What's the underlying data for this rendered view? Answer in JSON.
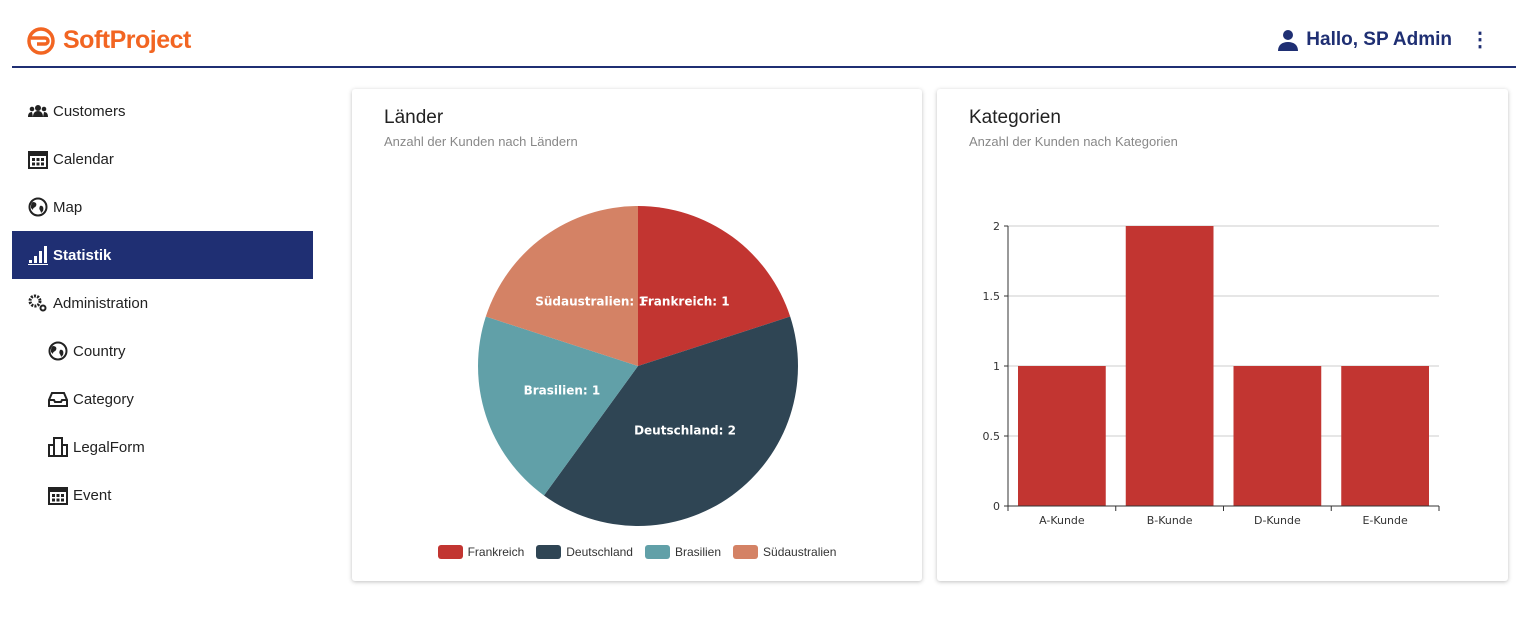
{
  "header": {
    "brand": "SoftProject",
    "greeting": "Hallo, SP Admin",
    "brand_color": "#f26522",
    "accent_color": "#1f2f73"
  },
  "sidebar": {
    "items": [
      {
        "label": "Customers",
        "icon": "users-icon"
      },
      {
        "label": "Calendar",
        "icon": "calendar-icon"
      },
      {
        "label": "Map",
        "icon": "globe-icon"
      },
      {
        "label": "Statistik",
        "icon": "bar-chart-icon",
        "active": true
      },
      {
        "label": "Administration",
        "icon": "gears-icon"
      },
      {
        "label": "Country",
        "icon": "globe-icon",
        "sub": true
      },
      {
        "label": "Category",
        "icon": "inbox-icon",
        "sub": true
      },
      {
        "label": "LegalForm",
        "icon": "building-icon",
        "sub": true
      },
      {
        "label": "Event",
        "icon": "calendar-icon",
        "sub": true
      }
    ]
  },
  "cards": {
    "laender": {
      "title": "Länder",
      "subtitle": "Anzahl der Kunden nach Ländern"
    },
    "kategorien": {
      "title": "Kategorien",
      "subtitle": "Anzahl der Kunden nach Kategorien"
    }
  },
  "chart_data": [
    {
      "type": "pie",
      "categories": [
        "Frankreich",
        "Deutschland",
        "Brasilien",
        "Südaustralien"
      ],
      "values": [
        1,
        2,
        1,
        1
      ],
      "colors": [
        "#c23531",
        "#2f4554",
        "#61a0a8",
        "#d48265"
      ],
      "labels": [
        "Frankreich: 1",
        "Deutschland: 2",
        "Brasilien: 1",
        "Südaustralien: 1"
      ],
      "legend": "bottom"
    },
    {
      "type": "bar",
      "categories": [
        "A-Kunde",
        "B-Kunde",
        "D-Kunde",
        "E-Kunde"
      ],
      "values": [
        1,
        2,
        1,
        1
      ],
      "ylim": [
        0,
        2
      ],
      "yticks": [
        "0",
        "0.5",
        "1",
        "1.5",
        "2"
      ],
      "color": "#c23531",
      "grid": true
    }
  ]
}
